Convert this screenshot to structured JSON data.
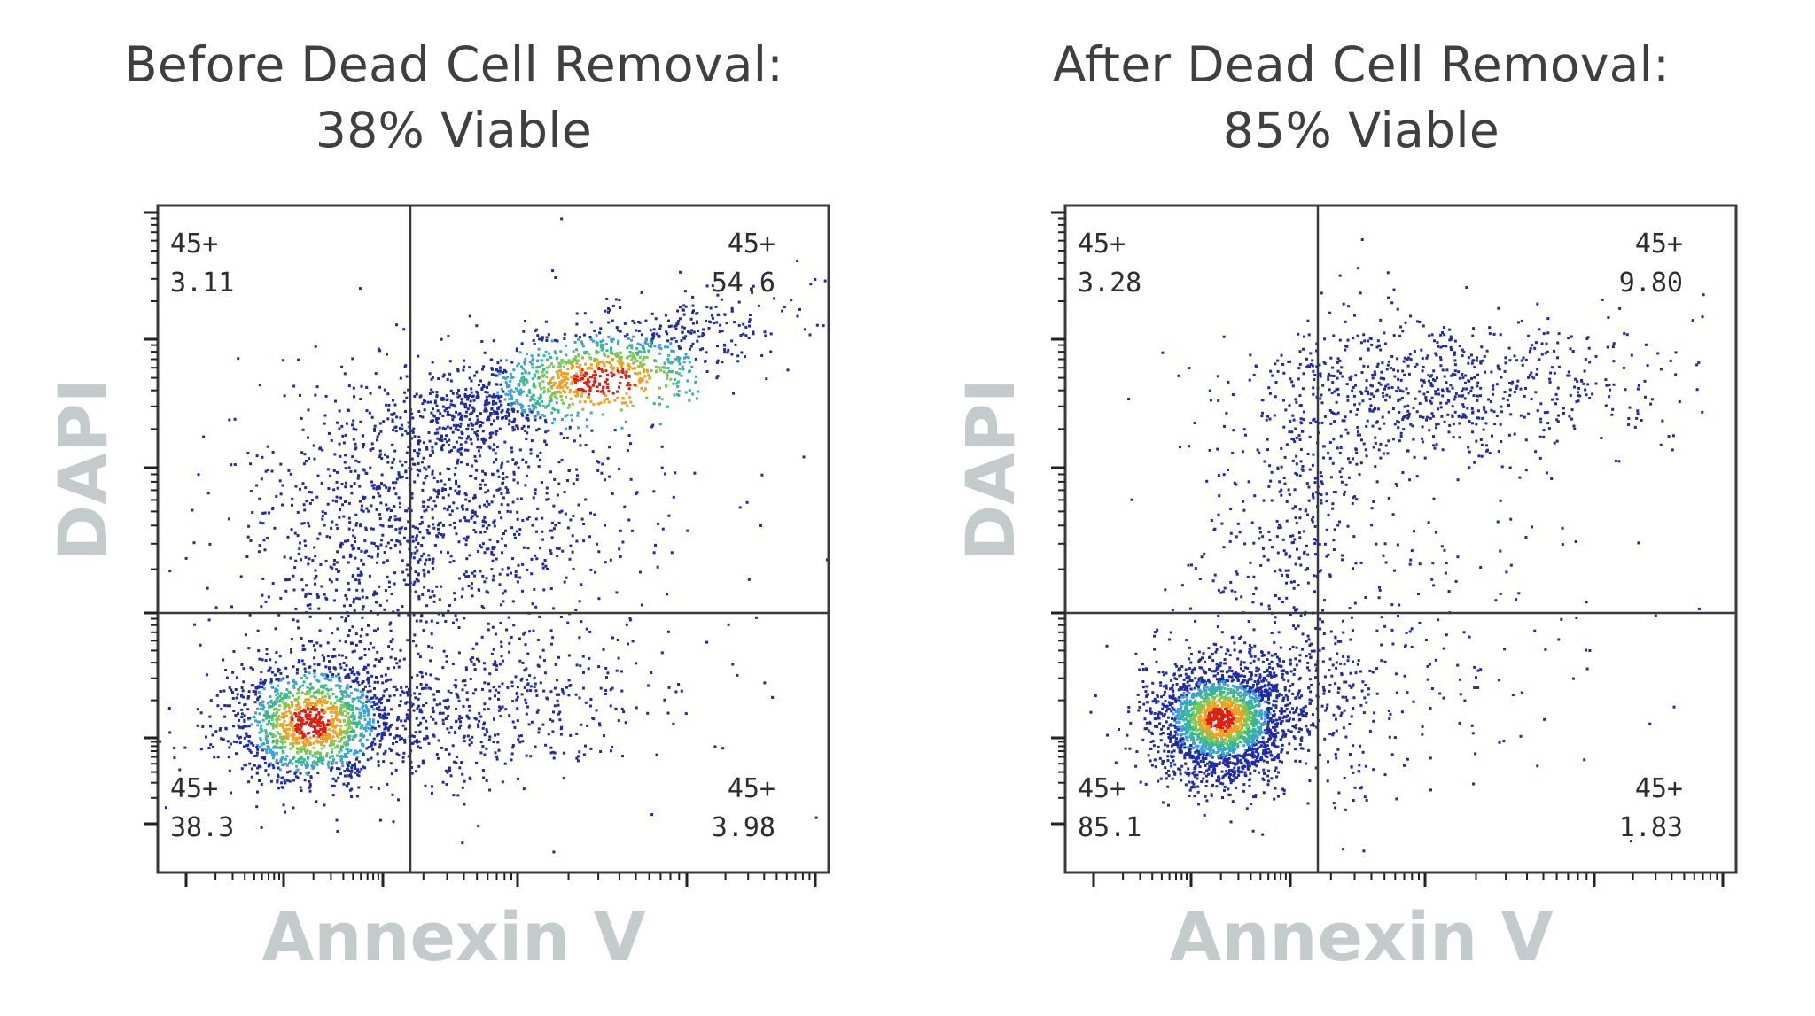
{
  "chart_data": [
    {
      "type": "scatter",
      "title": "Before Dead Cell Removal:",
      "subtitle": "38% Viable",
      "xlabel": "Annexin V",
      "ylabel": "DAPI",
      "x_scale": "log",
      "y_scale": "log",
      "grid": false,
      "legend": "none",
      "quadrants": [
        {
          "position": "top-left",
          "label": "45+",
          "value": "3.11"
        },
        {
          "position": "top-right",
          "label": "45+",
          "value": "54.6"
        },
        {
          "position": "bottom-left",
          "label": "45+",
          "value": "38.3"
        },
        {
          "position": "bottom-right",
          "label": "45+",
          "value": "3.98"
        }
      ],
      "colors": {
        "low_density": "#1e2aa8",
        "mid_density": "#3aa0d8",
        "high_density": "#7cc850",
        "peak_density": "#e01e10",
        "gate_lines": "#3a3a3a"
      }
    },
    {
      "type": "scatter",
      "title": "After Dead Cell Removal:",
      "subtitle": "85% Viable",
      "xlabel": "Annexin V",
      "ylabel": "DAPI",
      "x_scale": "log",
      "y_scale": "log",
      "grid": false,
      "legend": "none",
      "quadrants": [
        {
          "position": "top-left",
          "label": "45+",
          "value": "3.28"
        },
        {
          "position": "top-right",
          "label": "45+",
          "value": "9.80"
        },
        {
          "position": "bottom-left",
          "label": "45+",
          "value": "85.1"
        },
        {
          "position": "bottom-right",
          "label": "45+",
          "value": "1.83"
        }
      ],
      "colors": {
        "low_density": "#1e2aa8",
        "mid_density": "#3aa0d8",
        "high_density": "#7cc850",
        "peak_density": "#e01e10",
        "gate_lines": "#3a3a3a"
      }
    }
  ]
}
